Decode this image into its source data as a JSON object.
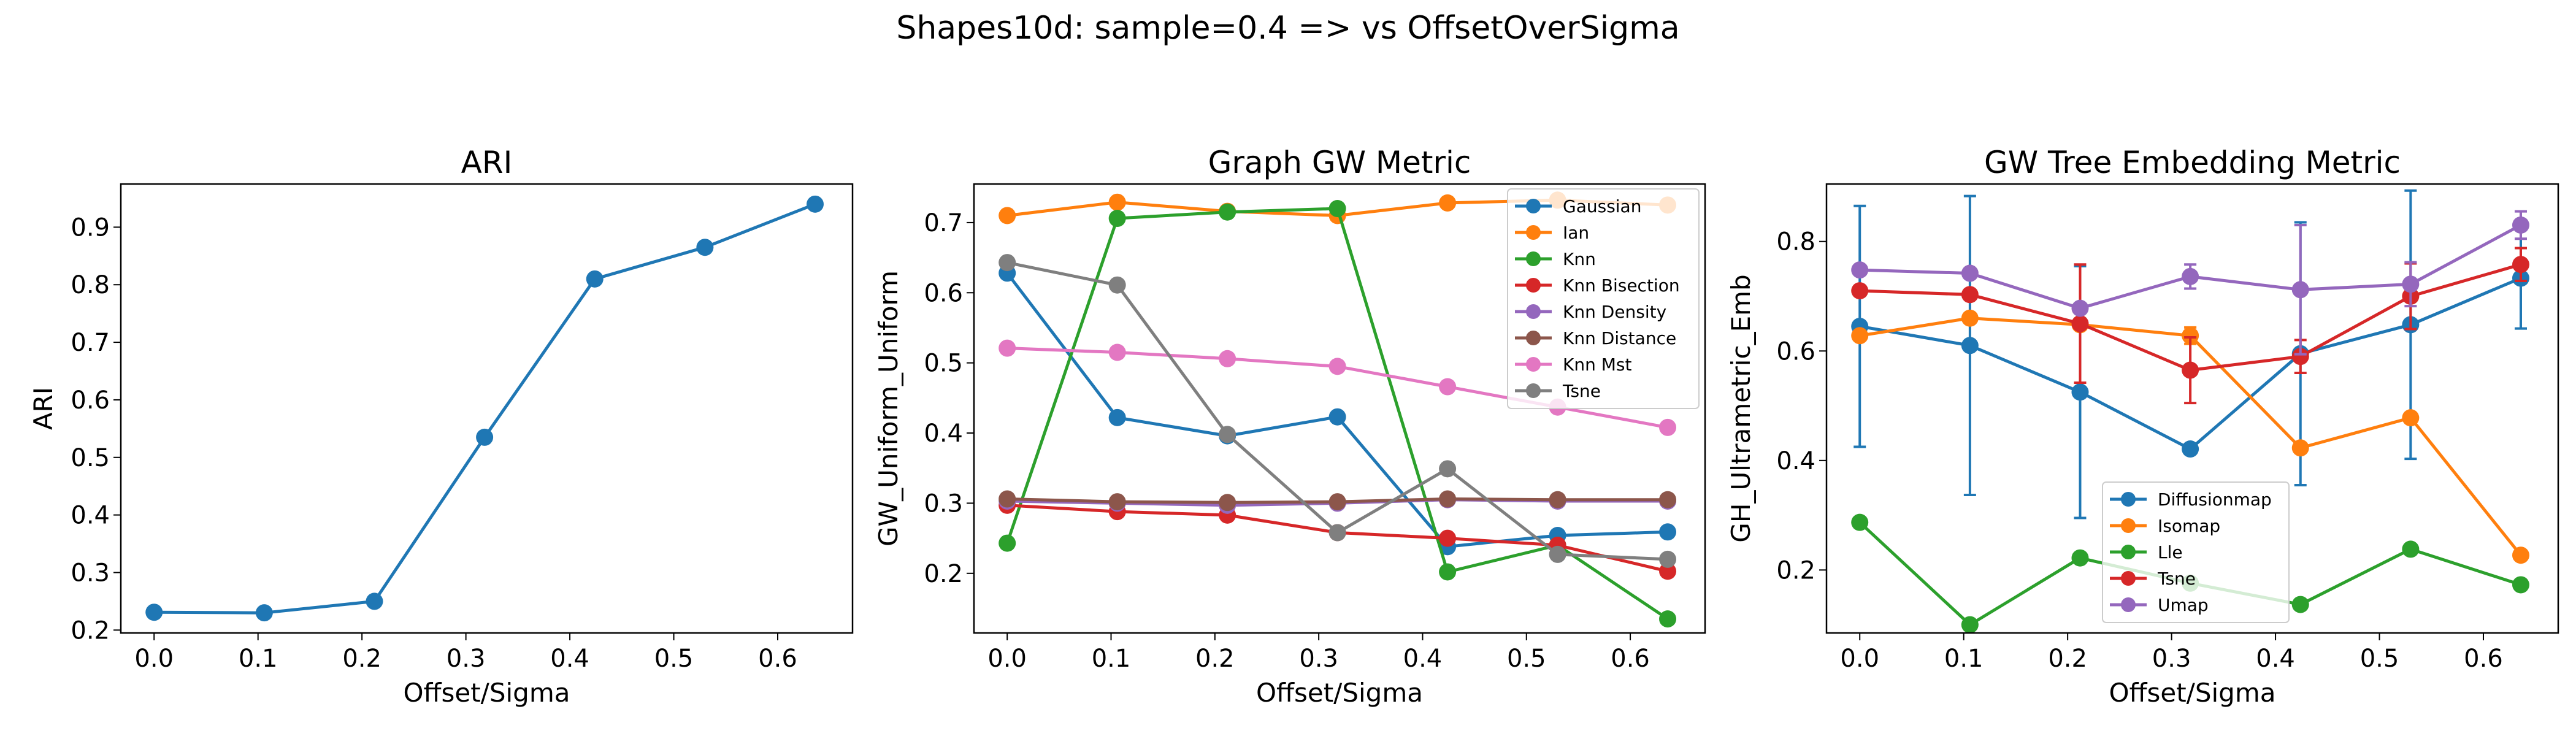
{
  "figure": {
    "suptitle": "Shapes10d: sample=0.4 => vs OffsetOverSigma"
  },
  "chart_data": [
    {
      "type": "line",
      "title": "ARI",
      "xlabel": "Offset/Sigma",
      "ylabel": "ARI",
      "xlim": [
        -0.032,
        0.672
      ],
      "ylim": [
        0.195,
        0.975
      ],
      "xticks": [
        0.0,
        0.1,
        0.2,
        0.3,
        0.4,
        0.5,
        0.6
      ],
      "yticks": [
        0.2,
        0.3,
        0.4,
        0.5,
        0.6,
        0.7,
        0.8,
        0.9
      ],
      "grid": false,
      "legend": "none",
      "x": [
        0.0,
        0.106,
        0.212,
        0.318,
        0.424,
        0.53,
        0.636
      ],
      "series": [
        {
          "color": "#1f77b4",
          "values": [
            0.231,
            0.23,
            0.25,
            0.535,
            0.81,
            0.865,
            0.94
          ]
        }
      ]
    },
    {
      "type": "line",
      "title": "Graph GW Metric",
      "xlabel": "Offset/Sigma",
      "ylabel": "GW_Uniform_Uniform",
      "xlim": [
        -0.032,
        0.672
      ],
      "ylim": [
        0.115,
        0.755
      ],
      "xticks": [
        0.0,
        0.1,
        0.2,
        0.3,
        0.4,
        0.5,
        0.6
      ],
      "yticks": [
        0.2,
        0.3,
        0.4,
        0.5,
        0.6,
        0.7
      ],
      "grid": false,
      "legend": "top-right",
      "x": [
        0.0,
        0.106,
        0.212,
        0.318,
        0.424,
        0.53,
        0.636
      ],
      "series": [
        {
          "name": "Gaussian",
          "color": "#1f77b4",
          "values": [
            0.628,
            0.422,
            0.396,
            0.423,
            0.238,
            0.254,
            0.259
          ]
        },
        {
          "name": "Ian",
          "color": "#ff7f0e",
          "values": [
            0.71,
            0.729,
            0.716,
            0.71,
            0.728,
            0.732,
            0.725
          ]
        },
        {
          "name": "Knn",
          "color": "#2ca02c",
          "values": [
            0.243,
            0.706,
            0.715,
            0.72,
            0.202,
            0.24,
            0.135
          ]
        },
        {
          "name": "Knn Bisection",
          "color": "#d62728",
          "values": [
            0.297,
            0.288,
            0.283,
            0.258,
            0.25,
            0.24,
            0.203
          ]
        },
        {
          "name": "Knn Density",
          "color": "#9467bd",
          "values": [
            0.303,
            0.3,
            0.297,
            0.3,
            0.305,
            0.303,
            0.303
          ]
        },
        {
          "name": "Knn Distance",
          "color": "#8c564b",
          "values": [
            0.306,
            0.302,
            0.301,
            0.302,
            0.306,
            0.305,
            0.305
          ]
        },
        {
          "name": "Knn Mst",
          "color": "#e377c2",
          "values": [
            0.521,
            0.515,
            0.506,
            0.495,
            0.466,
            0.437,
            0.408
          ]
        },
        {
          "name": "Tsne",
          "color": "#7f7f7f",
          "values": [
            0.643,
            0.611,
            0.398,
            0.258,
            0.349,
            0.227,
            0.22
          ]
        }
      ]
    },
    {
      "type": "line",
      "title": "GW Tree Embedding Metric",
      "xlabel": "Offset/Sigma",
      "ylabel": "GH_Ultrametric_Emb",
      "xlim": [
        -0.032,
        0.672
      ],
      "ylim": [
        0.085,
        0.905
      ],
      "xticks": [
        0.0,
        0.1,
        0.2,
        0.3,
        0.4,
        0.5,
        0.6
      ],
      "yticks": [
        0.2,
        0.4,
        0.6,
        0.8
      ],
      "grid": false,
      "legend": "bottom-center",
      "x": [
        0.0,
        0.106,
        0.212,
        0.318,
        0.424,
        0.53,
        0.636
      ],
      "series": [
        {
          "name": "Diffusionmap",
          "color": "#1f77b4",
          "values": [
            0.645,
            0.61,
            0.525,
            0.421,
            0.595,
            0.648,
            0.733
          ],
          "errors": [
            0.22,
            0.273,
            0.23,
            0.0,
            0.24,
            0.245,
            0.092
          ]
        },
        {
          "name": "Isomap",
          "color": "#ff7f0e",
          "values": [
            0.628,
            0.66,
            0.648,
            0.628,
            0.423,
            0.478,
            0.227
          ],
          "errors": [
            0.0,
            0.0,
            0.0,
            0.015,
            0.0,
            0.0,
            0.0
          ]
        },
        {
          "name": "Lle",
          "color": "#2ca02c",
          "values": [
            0.287,
            0.1,
            0.222,
            0.176,
            0.137,
            0.238,
            0.173
          ],
          "errors": [
            0.0,
            0.0,
            0.0,
            0.0,
            0.0,
            0.0,
            0.0
          ]
        },
        {
          "name": "Tsne",
          "color": "#d62728",
          "values": [
            0.71,
            0.703,
            0.65,
            0.565,
            0.59,
            0.7,
            0.758
          ],
          "errors": [
            0.0,
            0.0,
            0.108,
            0.06,
            0.03,
            0.06,
            0.03
          ]
        },
        {
          "name": "Umap",
          "color": "#9467bd",
          "values": [
            0.748,
            0.742,
            0.678,
            0.736,
            0.712,
            0.722,
            0.83
          ],
          "errors": [
            0.0,
            0.0,
            0.0,
            0.022,
            0.118,
            0.04,
            0.025
          ]
        }
      ]
    }
  ]
}
